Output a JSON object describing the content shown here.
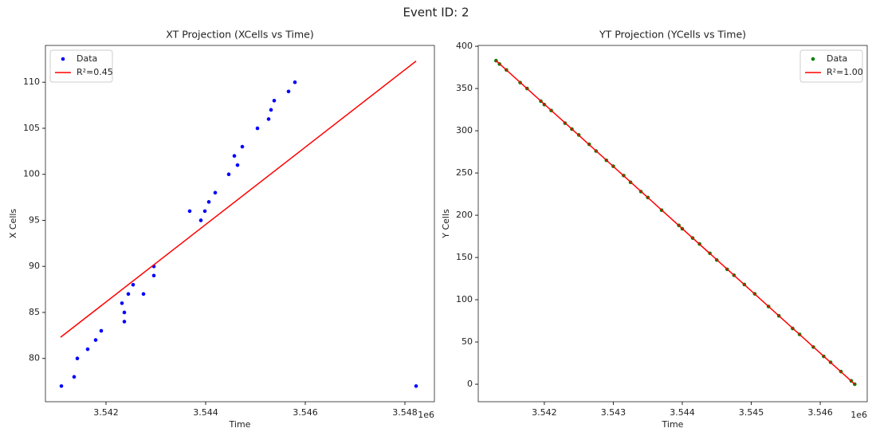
{
  "title": "Event ID: 2",
  "chart_data": [
    {
      "type": "scatter",
      "title": "XT Projection (XCells vs Time)",
      "x_label": "Time",
      "y_label": "X Cells",
      "x_offset_label": "1e6",
      "xlim": [
        3540784,
        3548592
      ],
      "ylim": [
        75.3,
        114.0
      ],
      "xticks": [
        {
          "value": 3542000,
          "label": "3.542"
        },
        {
          "value": 3544000,
          "label": "3.544"
        },
        {
          "value": 3546000,
          "label": "3.546"
        },
        {
          "value": 3548000,
          "label": "3.548"
        }
      ],
      "yticks": [
        80,
        85,
        90,
        95,
        100,
        105,
        110
      ],
      "legend": "upper left",
      "series": [
        {
          "name": "Data",
          "color": "#0000ff",
          "style": "points",
          "x": [
            3541104,
            3541360,
            3541424,
            3541632,
            3541792,
            3541904,
            3542320,
            3542368,
            3542368,
            3542448,
            3542544,
            3542752,
            3542960,
            3542960,
            3543680,
            3543904,
            3543984,
            3544064,
            3544192,
            3544464,
            3544576,
            3544640,
            3544736,
            3545040,
            3545264,
            3545312,
            3545376,
            3545664,
            3545792,
            3548224
          ],
          "values": [
            77,
            78,
            80,
            81,
            82,
            83,
            86,
            85,
            84,
            87,
            88,
            87,
            89,
            90,
            96,
            95,
            96,
            97,
            98,
            100,
            102,
            101,
            103,
            105,
            106,
            107,
            108,
            109,
            110,
            77
          ]
        },
        {
          "name": "R²=0.45",
          "color": "#ff0000",
          "style": "line",
          "x": [
            3541088,
            3548224
          ],
          "values": [
            82.3,
            112.3
          ]
        }
      ]
    },
    {
      "type": "scatter",
      "title": "YT Projection (YCells vs Time)",
      "x_label": "Time",
      "y_label": "Y Cells",
      "x_offset_label": "1e6",
      "xlim": [
        3541042,
        3546681
      ],
      "ylim": [
        -20.7,
        401
      ],
      "xticks": [
        {
          "value": 3542000,
          "label": "3.542"
        },
        {
          "value": 3543000,
          "label": "3.543"
        },
        {
          "value": 3544000,
          "label": "3.544"
        },
        {
          "value": 3545000,
          "label": "3.545"
        },
        {
          "value": 3546000,
          "label": "3.546"
        }
      ],
      "yticks": [
        0,
        50,
        100,
        150,
        200,
        250,
        300,
        350,
        400
      ],
      "legend": "upper right",
      "series": [
        {
          "name": "Data",
          "color": "#008000",
          "style": "points",
          "x": [
            3541300,
            3541350,
            3541450,
            3541650,
            3541750,
            3541950,
            3542000,
            3542100,
            3542300,
            3542400,
            3542500,
            3542650,
            3542750,
            3542900,
            3543000,
            3543150,
            3543250,
            3543400,
            3543500,
            3543700,
            3543950,
            3544000,
            3544150,
            3544250,
            3544400,
            3544500,
            3544650,
            3544750,
            3544900,
            3545050,
            3545250,
            3545400,
            3545600,
            3545700,
            3545900,
            3546050,
            3546150,
            3546300,
            3546450,
            3546500
          ],
          "values": [
            383,
            379,
            372,
            357,
            350,
            335,
            331,
            324,
            309,
            302,
            295,
            284,
            276,
            265,
            258,
            247,
            239,
            228,
            221,
            206,
            188,
            184,
            173,
            166,
            155,
            147,
            136,
            129,
            118,
            107,
            92,
            81,
            66,
            59,
            44,
            33,
            26,
            15,
            4,
            0
          ]
        },
        {
          "name": "R²=1.00",
          "color": "#ff0000",
          "style": "line",
          "x": [
            3541300,
            3546500
          ],
          "values": [
            383,
            0
          ]
        }
      ]
    }
  ]
}
